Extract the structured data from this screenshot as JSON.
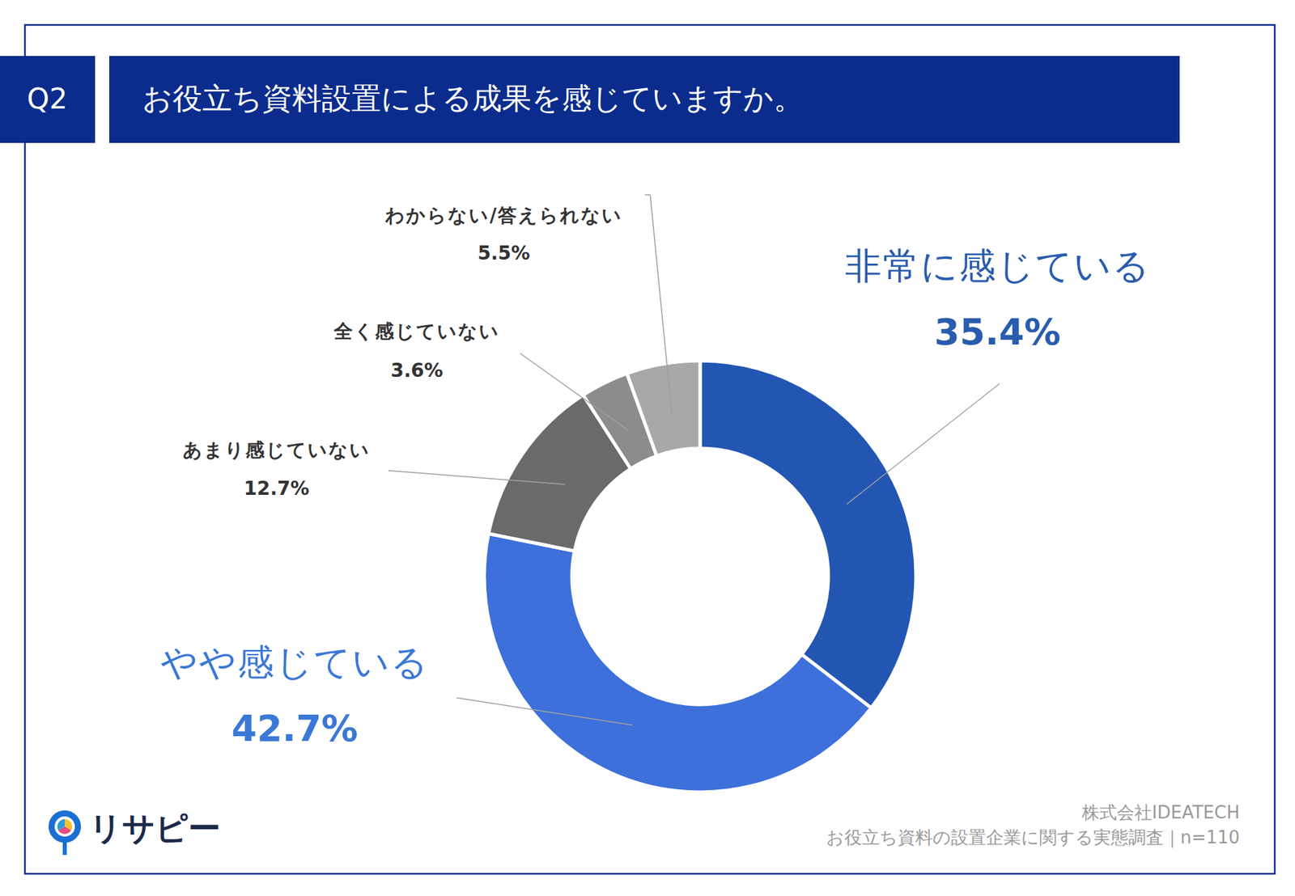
{
  "chart_data": {
    "type": "pie",
    "title": "お役立ち資料設置による成果を感じていますか。",
    "categories": [
      "非常に感じている",
      "やや感じている",
      "あまり感じていない",
      "全く感じていない",
      "わからない/答えられない"
    ],
    "values": [
      35.4,
      42.7,
      12.7,
      3.6,
      5.5
    ],
    "value_labels": [
      "35.4%",
      "42.7%",
      "12.7%",
      "3.6%",
      "5.5%"
    ],
    "colors": [
      "#2356b2",
      "#3e70db",
      "#6a6a6a",
      "#8c8c8c",
      "#a8a8a8"
    ],
    "data_labels": true,
    "annotations": [
      "Q2",
      "株式会社IDEATECH",
      "お役立ち資料の設置企業に関する実態調査｜n=110",
      "リサピー"
    ]
  }
}
